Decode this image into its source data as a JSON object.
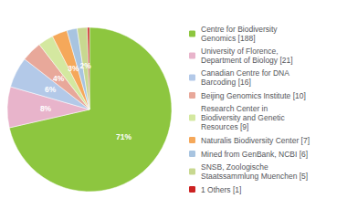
{
  "chart_data": {
    "type": "pie",
    "categories": [
      "Centre for Biodiversity\nGenomics [188]",
      "University of Florence,\nDepartment of Biology [21]",
      "Canadian Centre for DNA\nBarcoding [16]",
      "Beijing Genomics Institute [10]",
      "Research Center in\nBiodiversity and Genetic\nResources [9]",
      "Naturalis Biodiversity Center [7]",
      "Mined from GenBank, NCBI [6]",
      "SNSB, Zoologische\nStaatssammlung Muenchen [5]",
      "1 Others [1]"
    ],
    "values": [
      71,
      8,
      6,
      4,
      3,
      3,
      2,
      2,
      0.4
    ],
    "value_labels": [
      "71%",
      "8%",
      "6%",
      "4%",
      "3%",
      "3%",
      "2%",
      "2%",
      null
    ],
    "colors": [
      "#8dc63f",
      "#e8b4cb",
      "#b3c9e8",
      "#e8a89a",
      "#d4e8a0",
      "#f5a85a",
      "#a8c4e0",
      "#c8d890",
      "#cc2222"
    ],
    "data_labels": true,
    "legend": "right"
  }
}
